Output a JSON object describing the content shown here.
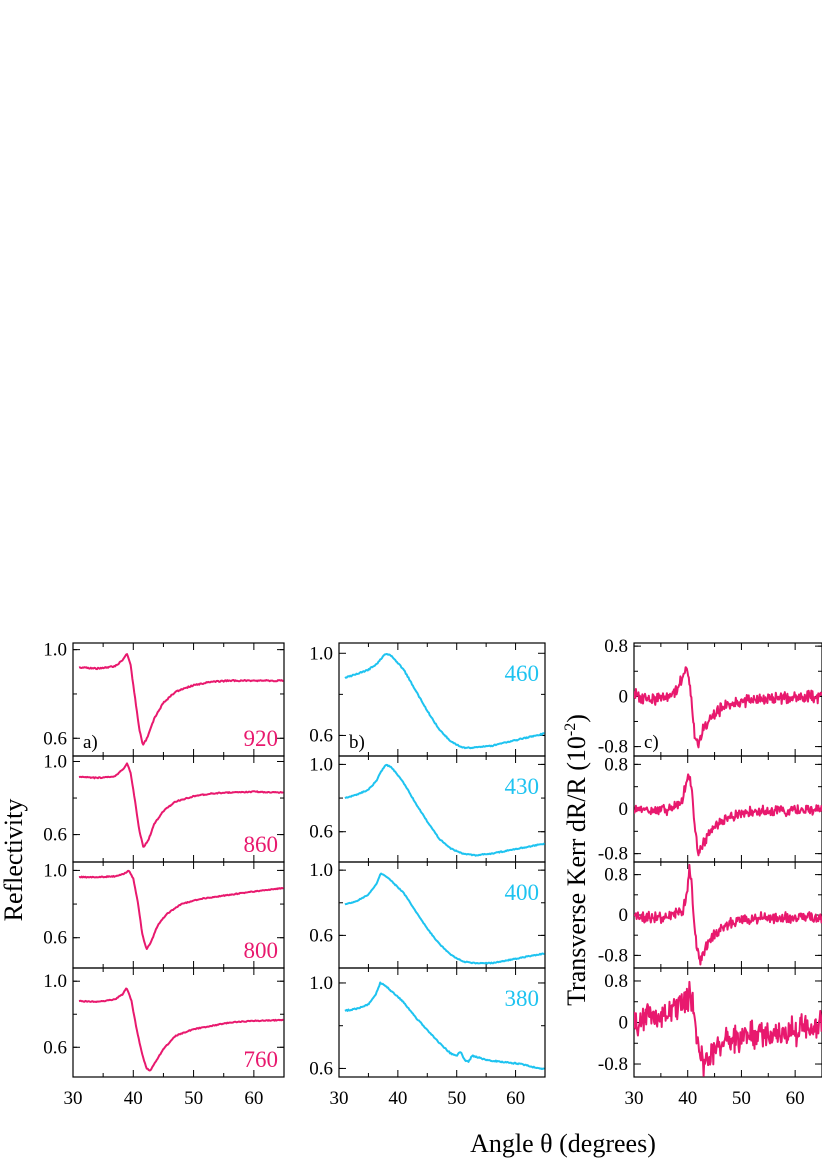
{
  "figure": {
    "xlabel": "Angle θ (degrees)",
    "ylabel_left": "Reflectivity",
    "ylabel_right": "Transverse Kerr dR/R (10",
    "ylabel_right_exp": "-2",
    "ylabel_right_close": ")"
  },
  "colors": {
    "pink": "#e8196e",
    "cyan": "#1ec3f0",
    "axis": "#000000"
  },
  "chart_data": [
    {
      "type": "line",
      "panel_label": "a)",
      "value_label": "920",
      "xlim": [
        30,
        65
      ],
      "ylim": [
        0.52,
        1.03
      ],
      "xticks": [
        "30",
        "40",
        "50",
        "60"
      ],
      "yticks": [
        {
          "value": 1.0,
          "label": "1.0"
        },
        {
          "value": 0.6,
          "label": "0.6"
        }
      ],
      "series": [
        {
          "x": [
            31,
            34,
            37,
            38.3,
            38.9,
            39.5,
            40.2,
            41,
            41.6,
            42.3,
            43.5,
            45,
            47,
            50,
            53,
            56,
            60,
            65
          ],
          "y": [
            0.92,
            0.915,
            0.925,
            0.955,
            0.985,
            0.94,
            0.8,
            0.64,
            0.57,
            0.6,
            0.69,
            0.76,
            0.81,
            0.84,
            0.855,
            0.86,
            0.86,
            0.86
          ]
        }
      ]
    },
    {
      "type": "line",
      "panel_label": "",
      "value_label": "860",
      "xlim": [
        30,
        65
      ],
      "ylim": [
        0.45,
        1.03
      ],
      "xticks": [
        "30",
        "40",
        "50",
        "60"
      ],
      "yticks": [
        {
          "value": 1.0,
          "label": "1.0"
        },
        {
          "value": 0.6,
          "label": "0.6"
        }
      ],
      "series": [
        {
          "x": [
            31,
            34,
            37,
            38.4,
            39,
            39.6,
            40.3,
            41,
            41.7,
            42.5,
            43.5,
            45,
            47,
            50,
            53,
            56,
            60,
            65
          ],
          "y": [
            0.915,
            0.91,
            0.92,
            0.96,
            0.99,
            0.93,
            0.78,
            0.62,
            0.53,
            0.57,
            0.66,
            0.73,
            0.78,
            0.81,
            0.825,
            0.83,
            0.835,
            0.83
          ]
        }
      ]
    },
    {
      "type": "line",
      "panel_label": "",
      "value_label": "800",
      "xlim": [
        30,
        65
      ],
      "ylim": [
        0.42,
        1.05
      ],
      "xticks": [
        "30",
        "40",
        "50",
        "60"
      ],
      "yticks": [
        {
          "value": 1.0,
          "label": "1.0"
        },
        {
          "value": 0.6,
          "label": "0.6"
        }
      ],
      "series": [
        {
          "x": [
            31,
            34,
            37,
            38.5,
            39.3,
            40,
            40.8,
            41.5,
            42.2,
            43,
            44,
            45.5,
            48,
            51,
            55,
            60,
            65
          ],
          "y": [
            0.96,
            0.96,
            0.965,
            0.98,
            1.0,
            0.95,
            0.8,
            0.62,
            0.53,
            0.58,
            0.67,
            0.74,
            0.8,
            0.83,
            0.85,
            0.875,
            0.895
          ]
        }
      ]
    },
    {
      "type": "line",
      "panel_label": "",
      "value_label": "760",
      "xlim": [
        30,
        65
      ],
      "ylim": [
        0.42,
        1.08
      ],
      "xticks": [
        "30",
        "40",
        "50",
        "60"
      ],
      "yticks": [
        {
          "value": 1.0,
          "label": "1.0"
        },
        {
          "value": 0.6,
          "label": "0.6"
        }
      ],
      "series": [
        {
          "x": [
            31,
            34,
            37,
            38.2,
            38.9,
            39.7,
            40.5,
            41.4,
            42.2,
            42.8,
            43.5,
            45,
            47,
            50,
            53,
            56,
            60,
            65
          ],
          "y": [
            0.88,
            0.875,
            0.89,
            0.92,
            0.96,
            0.88,
            0.72,
            0.57,
            0.47,
            0.46,
            0.5,
            0.59,
            0.67,
            0.71,
            0.73,
            0.75,
            0.76,
            0.765
          ]
        }
      ]
    },
    {
      "type": "line",
      "panel_label": "b)",
      "value_label": "460",
      "xlim": [
        30,
        65
      ],
      "ylim": [
        0.5,
        1.05
      ],
      "xticks": [
        "30",
        "40",
        "50",
        "60"
      ],
      "yticks": [
        {
          "value": 1.0,
          "label": "1.0"
        },
        {
          "value": 0.6,
          "label": "0.6"
        }
      ],
      "series": [
        {
          "x": [
            31,
            33,
            35,
            36.5,
            37.3,
            38,
            39,
            41,
            43,
            45,
            47,
            49,
            51,
            53,
            56,
            59,
            62,
            65
          ],
          "y": [
            0.88,
            0.9,
            0.92,
            0.95,
            0.98,
            1.0,
            0.985,
            0.92,
            0.82,
            0.72,
            0.63,
            0.57,
            0.54,
            0.54,
            0.55,
            0.57,
            0.59,
            0.61
          ]
        }
      ]
    },
    {
      "type": "line",
      "panel_label": "",
      "value_label": "430",
      "xlim": [
        30,
        65
      ],
      "ylim": [
        0.42,
        1.05
      ],
      "xticks": [
        "30",
        "40",
        "50",
        "60"
      ],
      "yticks": [
        {
          "value": 1.0,
          "label": "1.0"
        },
        {
          "value": 0.6,
          "label": "0.6"
        }
      ],
      "series": [
        {
          "x": [
            31,
            33,
            35,
            36.3,
            37.2,
            38,
            39,
            41,
            43,
            45,
            47,
            49,
            51,
            53,
            56,
            59,
            62,
            65
          ],
          "y": [
            0.8,
            0.82,
            0.85,
            0.9,
            0.96,
            1.0,
            0.98,
            0.89,
            0.77,
            0.66,
            0.56,
            0.5,
            0.47,
            0.46,
            0.47,
            0.49,
            0.51,
            0.53
          ]
        }
      ]
    },
    {
      "type": "line",
      "panel_label": "",
      "value_label": "400",
      "xlim": [
        30,
        65
      ],
      "ylim": [
        0.4,
        1.05
      ],
      "xticks": [
        "30",
        "40",
        "50",
        "60"
      ],
      "yticks": [
        {
          "value": 1.0,
          "label": "1.0"
        },
        {
          "value": 0.6,
          "label": "0.6"
        }
      ],
      "series": [
        {
          "x": [
            31,
            33,
            35,
            36.3,
            37.1,
            38,
            39,
            41,
            43,
            45,
            47,
            49,
            51,
            53,
            56,
            59,
            62,
            65
          ],
          "y": [
            0.79,
            0.81,
            0.85,
            0.91,
            0.98,
            0.96,
            0.93,
            0.86,
            0.75,
            0.64,
            0.55,
            0.48,
            0.44,
            0.43,
            0.43,
            0.45,
            0.47,
            0.49
          ]
        }
      ]
    },
    {
      "type": "line",
      "panel_label": "",
      "value_label": "380",
      "xlim": [
        30,
        65
      ],
      "ylim": [
        0.56,
        1.07
      ],
      "xticks": [
        "30",
        "40",
        "50",
        "60"
      ],
      "yticks": [
        {
          "value": 1.0,
          "label": "1.0"
        },
        {
          "value": 0.6,
          "label": "0.6"
        }
      ],
      "series": [
        {
          "x": [
            31,
            33,
            35,
            36.3,
            37,
            38,
            39,
            41,
            43,
            45,
            47,
            49,
            50,
            50.7,
            51.3,
            52,
            52.6,
            55,
            58,
            61,
            64,
            65
          ],
          "y": [
            0.87,
            0.88,
            0.9,
            0.95,
            1.0,
            0.985,
            0.96,
            0.91,
            0.84,
            0.78,
            0.72,
            0.67,
            0.66,
            0.68,
            0.64,
            0.63,
            0.66,
            0.64,
            0.63,
            0.62,
            0.6,
            0.6
          ]
        }
      ]
    },
    {
      "type": "line",
      "panel_label": "c)",
      "value_label": "",
      "xlim": [
        30,
        65
      ],
      "ylim": [
        -0.95,
        0.85
      ],
      "xticks": [
        "30",
        "40",
        "50",
        "60"
      ],
      "yticks": [
        {
          "value": 0.8,
          "label": "0.8"
        },
        {
          "value": 0,
          "label": "0"
        },
        {
          "value": -0.8,
          "label": "-0.8"
        }
      ],
      "noise": 0.07,
      "series": [
        {
          "x": [
            30,
            33,
            36,
            38,
            39.2,
            39.8,
            40.3,
            40.9,
            41.4,
            42,
            43,
            45,
            47,
            50,
            55,
            60,
            65
          ],
          "y": [
            0.02,
            -0.05,
            0.0,
            0.1,
            0.35,
            0.48,
            0.3,
            -0.25,
            -0.7,
            -0.78,
            -0.5,
            -0.28,
            -0.15,
            -0.08,
            -0.04,
            -0.02,
            0.0
          ]
        }
      ]
    },
    {
      "type": "line",
      "panel_label": "",
      "value_label": "",
      "xlim": [
        30,
        65
      ],
      "ylim": [
        -0.95,
        0.95
      ],
      "xticks": [
        "30",
        "40",
        "50",
        "60"
      ],
      "yticks": [
        {
          "value": 0.8,
          "label": "0.8"
        },
        {
          "value": 0,
          "label": "0"
        },
        {
          "value": -0.8,
          "label": "-0.8"
        }
      ],
      "noise": 0.07,
      "series": [
        {
          "x": [
            30,
            34,
            37,
            38.8,
            39.6,
            40.3,
            40.8,
            41.3,
            41.9,
            42.5,
            43.5,
            45,
            47,
            50,
            55,
            60,
            65
          ],
          "y": [
            -0.03,
            -0.03,
            0.0,
            0.1,
            0.4,
            0.6,
            0.3,
            -0.3,
            -0.8,
            -0.72,
            -0.5,
            -0.32,
            -0.18,
            -0.08,
            -0.03,
            -0.02,
            0.0
          ]
        }
      ]
    },
    {
      "type": "line",
      "panel_label": "",
      "value_label": "",
      "xlim": [
        30,
        65
      ],
      "ylim": [
        -1.05,
        1.05
      ],
      "xticks": [
        "30",
        "40",
        "50",
        "60"
      ],
      "yticks": [
        {
          "value": 0.8,
          "label": "0.8"
        },
        {
          "value": 0,
          "label": "0"
        },
        {
          "value": -0.8,
          "label": "-0.8"
        }
      ],
      "noise": 0.08,
      "series": [
        {
          "x": [
            30,
            34,
            37,
            39,
            39.8,
            40.3,
            40.7,
            41.2,
            41.7,
            42.3,
            43,
            44,
            46,
            49,
            55,
            60,
            65
          ],
          "y": [
            -0.05,
            -0.05,
            -0.02,
            0.05,
            0.4,
            0.95,
            0.6,
            -0.1,
            -0.6,
            -0.95,
            -0.75,
            -0.5,
            -0.3,
            -0.12,
            -0.05,
            -0.05,
            -0.05
          ]
        }
      ]
    },
    {
      "type": "line",
      "panel_label": "",
      "value_label": "",
      "xlim": [
        30,
        65
      ],
      "ylim": [
        -1.05,
        1.05
      ],
      "xticks": [
        "30",
        "40",
        "50",
        "60"
      ],
      "yticks": [
        {
          "value": 0.8,
          "label": "0.8"
        },
        {
          "value": 0,
          "label": "0"
        },
        {
          "value": -0.8,
          "label": "-0.8"
        }
      ],
      "noise": 0.2,
      "series": [
        {
          "x": [
            30,
            33,
            36,
            38,
            39.5,
            40.3,
            41,
            41.8,
            42.5,
            43.5,
            44.5,
            46,
            49,
            52,
            56,
            60,
            65
          ],
          "y": [
            0.0,
            0.1,
            0.15,
            0.3,
            0.4,
            0.55,
            0.3,
            -0.4,
            -0.7,
            -0.75,
            -0.55,
            -0.4,
            -0.3,
            -0.25,
            -0.2,
            -0.15,
            -0.05
          ]
        }
      ]
    }
  ]
}
